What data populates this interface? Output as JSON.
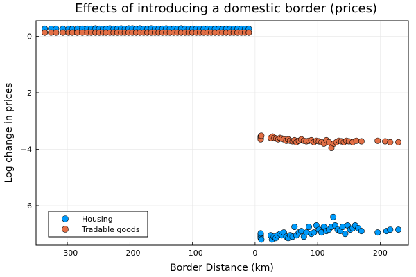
{
  "chart_data": {
    "type": "scatter",
    "title": "Effects of introducing a domestic border (prices)",
    "xlabel": "Border Distance (km)",
    "ylabel": "Log change in prices",
    "xlim": [
      -350,
      245
    ],
    "ylim": [
      -7.4,
      0.55
    ],
    "x_ticks": [
      -300,
      -200,
      -100,
      0,
      100,
      200
    ],
    "x_tick_labels": [
      "−300",
      "−200",
      "−100",
      "0",
      "100",
      "200"
    ],
    "y_ticks": [
      0,
      -2,
      -4,
      -6
    ],
    "y_tick_labels": [
      "0",
      "−2",
      "−4",
      "−6"
    ],
    "grid": true,
    "legend_position": "bottom-left",
    "series": [
      {
        "name": "Housing",
        "color": "#009AFA",
        "points": [
          [
            -336,
            0.27
          ],
          [
            -326,
            0.27
          ],
          [
            -318,
            0.27
          ],
          [
            -307,
            0.27
          ],
          [
            -298,
            0.27
          ],
          [
            -292,
            0.26
          ],
          [
            -284,
            0.27
          ],
          [
            -276,
            0.27
          ],
          [
            -268,
            0.27
          ],
          [
            -262,
            0.27
          ],
          [
            -255,
            0.28
          ],
          [
            -249,
            0.27
          ],
          [
            -243,
            0.27
          ],
          [
            -238,
            0.27
          ],
          [
            -232,
            0.28
          ],
          [
            -226,
            0.27
          ],
          [
            -220,
            0.27
          ],
          [
            -214,
            0.28
          ],
          [
            -208,
            0.27
          ],
          [
            -202,
            0.28
          ],
          [
            -196,
            0.28
          ],
          [
            -190,
            0.27
          ],
          [
            -184,
            0.28
          ],
          [
            -178,
            0.27
          ],
          [
            -172,
            0.27
          ],
          [
            -166,
            0.28
          ],
          [
            -160,
            0.27
          ],
          [
            -154,
            0.27
          ],
          [
            -148,
            0.27
          ],
          [
            -142,
            0.28
          ],
          [
            -136,
            0.27
          ],
          [
            -130,
            0.27
          ],
          [
            -124,
            0.27
          ],
          [
            -118,
            0.28
          ],
          [
            -112,
            0.27
          ],
          [
            -106,
            0.27
          ],
          [
            -100,
            0.27
          ],
          [
            -94,
            0.27
          ],
          [
            -88,
            0.27
          ],
          [
            -82,
            0.27
          ],
          [
            -76,
            0.27
          ],
          [
            -70,
            0.27
          ],
          [
            -64,
            0.27
          ],
          [
            -58,
            0.27
          ],
          [
            -52,
            0.26
          ],
          [
            -46,
            0.27
          ],
          [
            -40,
            0.27
          ],
          [
            -34,
            0.27
          ],
          [
            -28,
            0.27
          ],
          [
            -22,
            0.27
          ],
          [
            -16,
            0.27
          ],
          [
            -10,
            0.27
          ],
          [
            9,
            -7.0
          ],
          [
            9,
            -7.05
          ],
          [
            9,
            -7.1
          ],
          [
            9,
            -7.15
          ],
          [
            9,
            -6.98
          ],
          [
            10,
            -7.2
          ],
          [
            25,
            -7.05
          ],
          [
            27,
            -7.2
          ],
          [
            30,
            -7.1
          ],
          [
            33,
            -7.15
          ],
          [
            36,
            -7.05
          ],
          [
            40,
            -7.0
          ],
          [
            43,
            -7.05
          ],
          [
            46,
            -6.95
          ],
          [
            50,
            -7.1
          ],
          [
            53,
            -7.15
          ],
          [
            56,
            -7.05
          ],
          [
            60,
            -7.1
          ],
          [
            63,
            -6.75
          ],
          [
            66,
            -7.05
          ],
          [
            70,
            -6.95
          ],
          [
            74,
            -6.9
          ],
          [
            78,
            -7.1
          ],
          [
            82,
            -6.95
          ],
          [
            86,
            -6.75
          ],
          [
            90,
            -7.0
          ],
          [
            94,
            -6.95
          ],
          [
            98,
            -6.7
          ],
          [
            102,
            -6.85
          ],
          [
            106,
            -6.95
          ],
          [
            110,
            -6.75
          ],
          [
            114,
            -6.9
          ],
          [
            118,
            -6.85
          ],
          [
            122,
            -6.75
          ],
          [
            125,
            -6.4
          ],
          [
            128,
            -6.7
          ],
          [
            132,
            -6.85
          ],
          [
            136,
            -6.9
          ],
          [
            140,
            -6.75
          ],
          [
            144,
            -7.0
          ],
          [
            148,
            -6.7
          ],
          [
            152,
            -6.85
          ],
          [
            156,
            -6.8
          ],
          [
            160,
            -6.7
          ],
          [
            165,
            -6.8
          ],
          [
            170,
            -6.9
          ],
          [
            196,
            -6.95
          ],
          [
            210,
            -6.9
          ],
          [
            216,
            -6.85
          ],
          [
            229,
            -6.85
          ]
        ]
      },
      {
        "name": "Tradable goods",
        "color": "#E26F46",
        "points": [
          [
            -336,
            0.13
          ],
          [
            -326,
            0.13
          ],
          [
            -318,
            0.13
          ],
          [
            -307,
            0.13
          ],
          [
            -298,
            0.13
          ],
          [
            -292,
            0.13
          ],
          [
            -284,
            0.13
          ],
          [
            -276,
            0.13
          ],
          [
            -268,
            0.13
          ],
          [
            -262,
            0.13
          ],
          [
            -255,
            0.13
          ],
          [
            -249,
            0.13
          ],
          [
            -243,
            0.13
          ],
          [
            -238,
            0.13
          ],
          [
            -232,
            0.13
          ],
          [
            -226,
            0.13
          ],
          [
            -220,
            0.13
          ],
          [
            -214,
            0.13
          ],
          [
            -208,
            0.13
          ],
          [
            -202,
            0.13
          ],
          [
            -196,
            0.13
          ],
          [
            -190,
            0.13
          ],
          [
            -184,
            0.13
          ],
          [
            -178,
            0.13
          ],
          [
            -172,
            0.13
          ],
          [
            -166,
            0.13
          ],
          [
            -160,
            0.13
          ],
          [
            -154,
            0.13
          ],
          [
            -148,
            0.13
          ],
          [
            -142,
            0.13
          ],
          [
            -136,
            0.13
          ],
          [
            -130,
            0.13
          ],
          [
            -124,
            0.13
          ],
          [
            -118,
            0.13
          ],
          [
            -112,
            0.13
          ],
          [
            -106,
            0.13
          ],
          [
            -100,
            0.13
          ],
          [
            -94,
            0.13
          ],
          [
            -88,
            0.13
          ],
          [
            -82,
            0.13
          ],
          [
            -76,
            0.13
          ],
          [
            -70,
            0.13
          ],
          [
            -64,
            0.13
          ],
          [
            -58,
            0.13
          ],
          [
            -52,
            0.13
          ],
          [
            -46,
            0.13
          ],
          [
            -40,
            0.13
          ],
          [
            -34,
            0.13
          ],
          [
            -28,
            0.13
          ],
          [
            -22,
            0.13
          ],
          [
            -16,
            0.13
          ],
          [
            -10,
            0.13
          ],
          [
            9,
            -3.55
          ],
          [
            9,
            -3.6
          ],
          [
            9,
            -3.65
          ],
          [
            10,
            -3.52
          ],
          [
            25,
            -3.6
          ],
          [
            28,
            -3.55
          ],
          [
            31,
            -3.6
          ],
          [
            34,
            -3.62
          ],
          [
            37,
            -3.65
          ],
          [
            40,
            -3.6
          ],
          [
            43,
            -3.62
          ],
          [
            46,
            -3.65
          ],
          [
            50,
            -3.7
          ],
          [
            53,
            -3.65
          ],
          [
            56,
            -3.7
          ],
          [
            60,
            -3.72
          ],
          [
            63,
            -3.68
          ],
          [
            66,
            -3.75
          ],
          [
            70,
            -3.7
          ],
          [
            74,
            -3.65
          ],
          [
            78,
            -3.7
          ],
          [
            82,
            -3.72
          ],
          [
            86,
            -3.7
          ],
          [
            90,
            -3.68
          ],
          [
            94,
            -3.75
          ],
          [
            98,
            -3.7
          ],
          [
            102,
            -3.72
          ],
          [
            106,
            -3.75
          ],
          [
            110,
            -3.8
          ],
          [
            114,
            -3.68
          ],
          [
            118,
            -3.75
          ],
          [
            122,
            -3.95
          ],
          [
            126,
            -3.8
          ],
          [
            130,
            -3.75
          ],
          [
            134,
            -3.7
          ],
          [
            138,
            -3.72
          ],
          [
            142,
            -3.75
          ],
          [
            146,
            -3.7
          ],
          [
            150,
            -3.72
          ],
          [
            156,
            -3.75
          ],
          [
            162,
            -3.7
          ],
          [
            170,
            -3.72
          ],
          [
            196,
            -3.7
          ],
          [
            208,
            -3.72
          ],
          [
            216,
            -3.75
          ],
          [
            229,
            -3.75
          ]
        ]
      }
    ]
  }
}
